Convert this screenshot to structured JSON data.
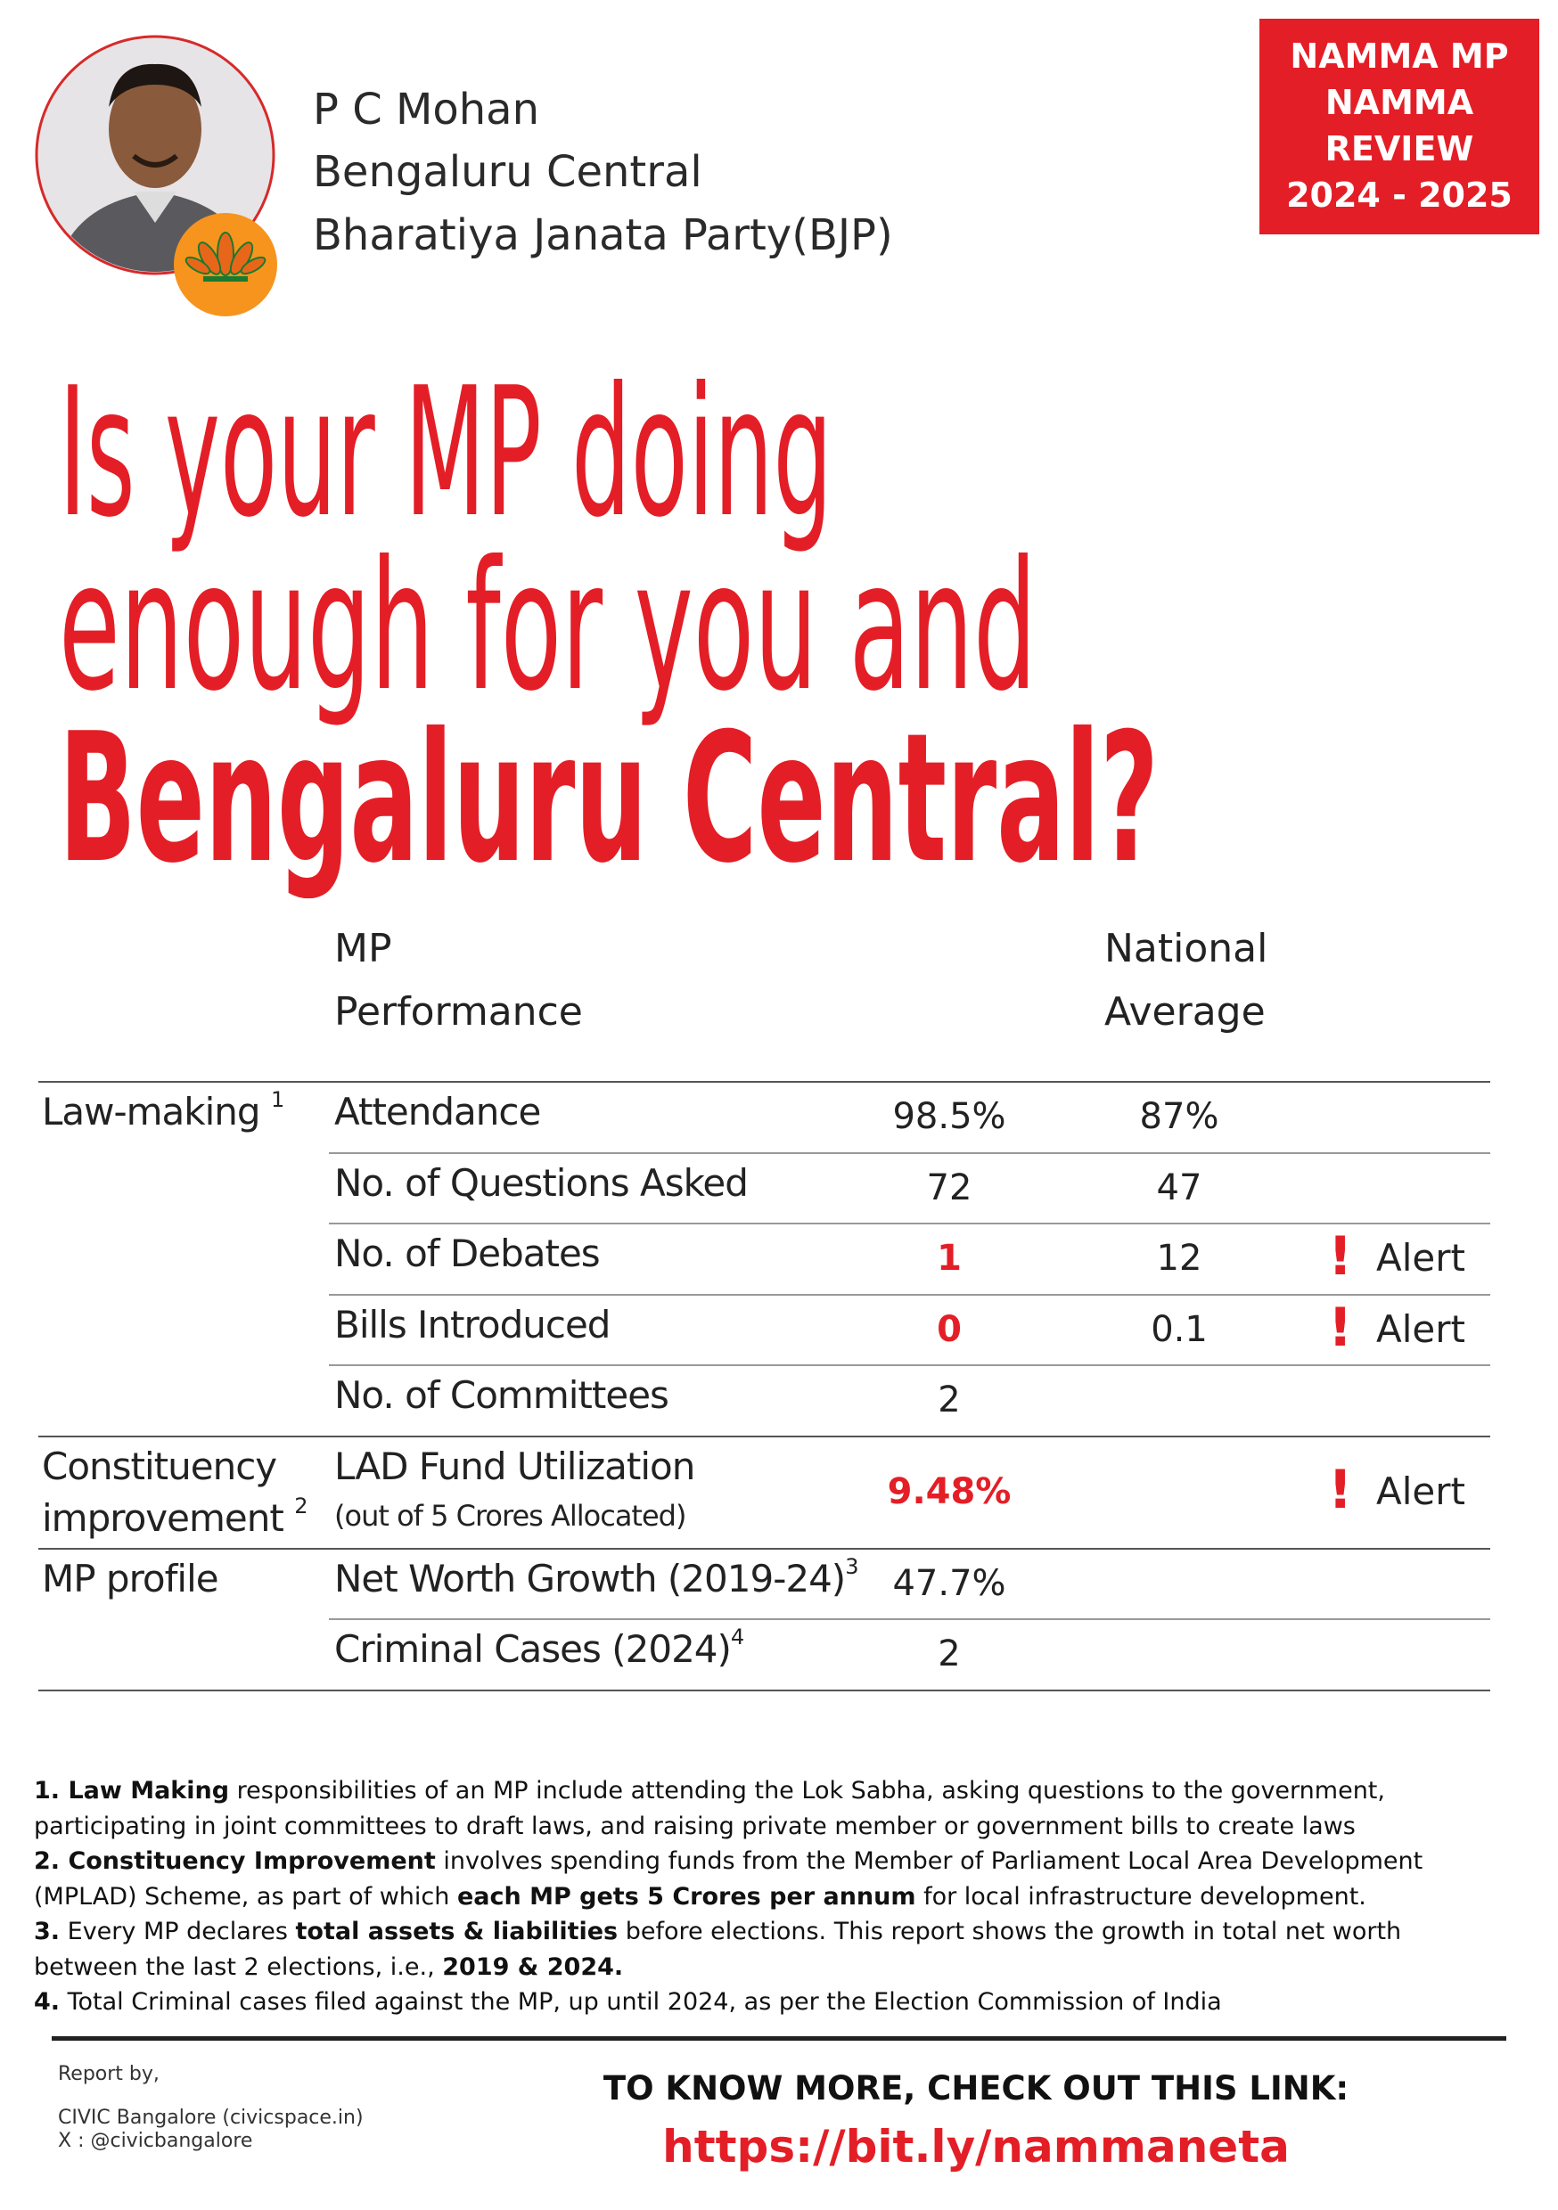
{
  "header": {
    "name": "P C Mohan",
    "constituency": "Bengaluru Central",
    "party": "Bharatiya Janata Party(BJP)",
    "badge": [
      "NAMMA MP",
      "NAMMA",
      "REVIEW",
      "2024 - 2025"
    ]
  },
  "headline": {
    "lines": [
      "Is your MP doing",
      "enough for you and",
      "Bengaluru Central?"
    ]
  },
  "table": {
    "columns": [
      [
        "MP",
        "Performance"
      ],
      [
        "National",
        "Average"
      ]
    ],
    "groups": [
      {
        "label": [
          "Law-making"
        ],
        "note": "1",
        "rows": [
          {
            "metric": "Attendance",
            "mp": "98.5%",
            "avg": "87%"
          },
          {
            "metric": "No. of Questions Asked",
            "mp": "72",
            "avg": "47"
          },
          {
            "metric": "No. of Debates",
            "mp": "1",
            "avg": "12",
            "highlight": true,
            "alert": "Alert"
          },
          {
            "metric": "Bills Introduced",
            "mp": "0",
            "avg": "0.1",
            "highlight": true,
            "alert": "Alert"
          },
          {
            "metric": "No. of Committees",
            "mp": "2"
          }
        ]
      },
      {
        "label": [
          "Constituency",
          "improvement"
        ],
        "note": "2",
        "rows": [
          {
            "metric": "LAD Fund Utilization",
            "sub": "(out of 5 Crores Allocated)",
            "mp": "9.48%",
            "highlight": true,
            "alert": "Alert"
          }
        ]
      },
      {
        "label": [
          "MP profile"
        ],
        "rows": [
          {
            "metric": "Net Worth Growth (2019-24)",
            "note": "3",
            "mp": "47.7%"
          },
          {
            "metric": "Criminal Cases (2024)",
            "note": "4",
            "mp": "2"
          }
        ]
      }
    ]
  },
  "footnotes": [
    [
      {
        "text": "1. Law Making",
        "bold": true
      },
      {
        "text": " responsibilities of an MP include attending the Lok Sabha, asking questions to the government, participating in joint committees to draft laws, and raising private member or government bills to create laws"
      }
    ],
    [
      {
        "text": "2. Constituency Improvement",
        "bold": true
      },
      {
        "text": " involves spending funds from the Member of Parliament Local Area Development (MPLAD) Scheme, as part of which "
      },
      {
        "text": "each MP gets 5 Crores per annum",
        "bold": true
      },
      {
        "text": " for local infrastructure development."
      }
    ],
    [
      {
        "text": "3.",
        "bold": true
      },
      {
        "text": " Every MP declares "
      },
      {
        "text": "total assets & liabilities",
        "bold": true
      },
      {
        "text": " before elections. This report shows the growth in total net worth between the last 2 elections, i.e., "
      },
      {
        "text": "2019 & 2024.",
        "bold": true
      }
    ],
    [
      {
        "text": "4.",
        "bold": true
      },
      {
        "text": " Total Criminal cases filed against the MP, up until 2024, as per the Election Commission of India"
      }
    ]
  ],
  "footer": {
    "report_by": "Report by,",
    "org": "CIVIC Bangalore (civicspace.in)",
    "handle": "X : @civicbangalore",
    "cta": "TO KNOW MORE, CHECK OUT THIS LINK:",
    "link": "https://bit.ly/nammaneta"
  }
}
